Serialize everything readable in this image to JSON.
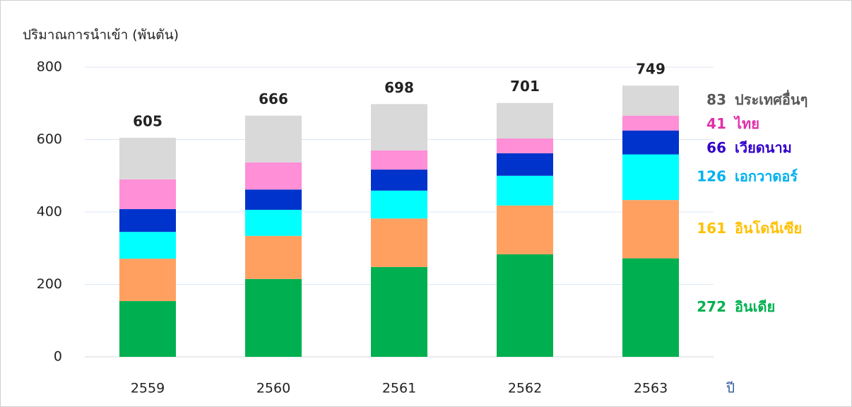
{
  "chart_data": {
    "type": "stacked_bar",
    "y_label": "ปริมาณการนำเข้า (พันตัน)",
    "x_label": "ปี",
    "categories": [
      "2559",
      "2560",
      "2561",
      "2562",
      "2563"
    ],
    "totals": [
      605,
      666,
      698,
      701,
      749
    ],
    "ylim": [
      0,
      800
    ],
    "yticks": [
      0,
      200,
      400,
      600,
      800
    ],
    "grid": true,
    "series": [
      {
        "name": "อินเดีย",
        "color": "#00b050",
        "label_color": "#00b050",
        "values": [
          154,
          215,
          248,
          283,
          272
        ]
      },
      {
        "name": "อินโดนีเซีย",
        "color": "#ffa061",
        "label_color": "#ffc000",
        "values": [
          117,
          119,
          134,
          135,
          161
        ]
      },
      {
        "name": "เอกวาดอร์",
        "color": "#00ffff",
        "label_color": "#00b0f0",
        "values": [
          74,
          72,
          77,
          82,
          126
        ]
      },
      {
        "name": "เวียดนาม",
        "color": "#0033cc",
        "label_color": "#3300cc",
        "values": [
          63,
          56,
          58,
          62,
          66
        ]
      },
      {
        "name": "ไทย",
        "color": "#ff8fd6",
        "label_color": "#e02fa8",
        "values": [
          82,
          75,
          53,
          41,
          41
        ]
      },
      {
        "name": "ประเทศอื่นๆ",
        "color": "#d9d9d9",
        "label_color": "#595959",
        "values": [
          115,
          129,
          128,
          98,
          83
        ]
      }
    ]
  }
}
